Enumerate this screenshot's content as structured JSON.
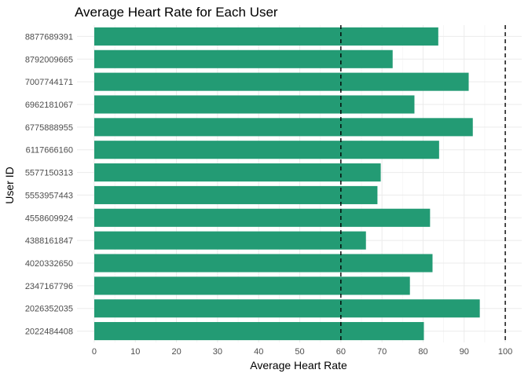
{
  "chart_data": {
    "type": "bar",
    "orientation": "horizontal",
    "title": "Average Heart Rate for Each User",
    "xlabel": "Average Heart Rate",
    "ylabel": "User ID",
    "xlim": [
      0,
      104
    ],
    "xticks": [
      0,
      10,
      20,
      30,
      40,
      50,
      60,
      70,
      80,
      90,
      100
    ],
    "grid": true,
    "bar_color": "#239b74",
    "reference_lines": [
      60,
      100
    ],
    "categories": [
      "8877689391",
      "8792009665",
      "7007744171",
      "6962181067",
      "6775888955",
      "6117666160",
      "5577150313",
      "5553957443",
      "4558609924",
      "4388161847",
      "4020332650",
      "2347167796",
      "2026352035",
      "2022484408"
    ],
    "values": [
      83.7,
      72.6,
      91.1,
      77.9,
      92.1,
      83.9,
      69.7,
      68.9,
      81.7,
      66.1,
      82.3,
      76.8,
      93.8,
      80.2
    ]
  }
}
